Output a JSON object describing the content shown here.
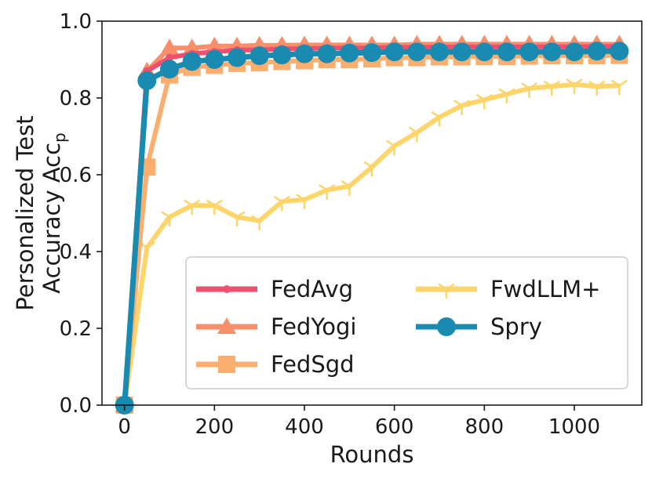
{
  "chart_data": {
    "type": "line",
    "title": "",
    "xlabel": "Rounds",
    "ylabel_line1": "Personalized Test",
    "ylabel_line2": "Accuracy Acc",
    "ylabel_subscript": "p",
    "xlim": [
      -50,
      1150
    ],
    "ylim": [
      0.0,
      1.0
    ],
    "xticks": [
      0,
      200,
      400,
      600,
      800,
      1000
    ],
    "yticks": [
      0.0,
      0.2,
      0.4,
      0.6,
      0.8,
      1.0
    ],
    "xtick_labels": [
      "0",
      "200",
      "400",
      "600",
      "800",
      "1000"
    ],
    "ytick_labels": [
      "0.0",
      "0.2",
      "0.4",
      "0.6",
      "0.8",
      "1.0"
    ],
    "legend_position": "lower-right",
    "x": [
      0,
      50,
      100,
      150,
      200,
      250,
      300,
      350,
      400,
      450,
      500,
      550,
      600,
      650,
      700,
      750,
      800,
      850,
      900,
      950,
      1000,
      1050,
      1100
    ],
    "series": [
      {
        "name": "FedAvg",
        "color": "#f0506e",
        "marker": "small-circle",
        "values": [
          0.0,
          0.87,
          0.905,
          0.915,
          0.92,
          0.925,
          0.925,
          0.928,
          0.928,
          0.93,
          0.93,
          0.93,
          0.932,
          0.932,
          0.932,
          0.933,
          0.933,
          0.933,
          0.933,
          0.933,
          0.933,
          0.934,
          0.934
        ]
      },
      {
        "name": "FedYogi",
        "color": "#f98e6b",
        "marker": "triangle",
        "values": [
          0.0,
          0.87,
          0.93,
          0.93,
          0.935,
          0.935,
          0.937,
          0.937,
          0.938,
          0.938,
          0.938,
          0.938,
          0.938,
          0.94,
          0.94,
          0.94,
          0.94,
          0.94,
          0.94,
          0.94,
          0.94,
          0.94,
          0.94
        ]
      },
      {
        "name": "FedSgd",
        "color": "#fbae6e",
        "marker": "square",
        "values": [
          0.0,
          0.62,
          0.86,
          0.88,
          0.885,
          0.89,
          0.892,
          0.895,
          0.897,
          0.9,
          0.9,
          0.902,
          0.905,
          0.905,
          0.907,
          0.907,
          0.908,
          0.908,
          0.909,
          0.91,
          0.91,
          0.91,
          0.911
        ]
      },
      {
        "name": "FwdLLM+",
        "color": "#fdd56b",
        "marker": "tri-down",
        "values": [
          0.0,
          0.41,
          0.49,
          0.52,
          0.52,
          0.49,
          0.48,
          0.53,
          0.535,
          0.56,
          0.57,
          0.62,
          0.675,
          0.71,
          0.75,
          0.78,
          0.795,
          0.81,
          0.825,
          0.83,
          0.835,
          0.83,
          0.832
        ]
      },
      {
        "name": "Spry",
        "color": "#1a8bb0",
        "marker": "large-circle",
        "values": [
          0.0,
          0.845,
          0.875,
          0.895,
          0.9,
          0.905,
          0.91,
          0.912,
          0.915,
          0.915,
          0.917,
          0.918,
          0.92,
          0.92,
          0.92,
          0.92,
          0.92,
          0.92,
          0.92,
          0.92,
          0.92,
          0.922,
          0.922
        ]
      }
    ]
  }
}
